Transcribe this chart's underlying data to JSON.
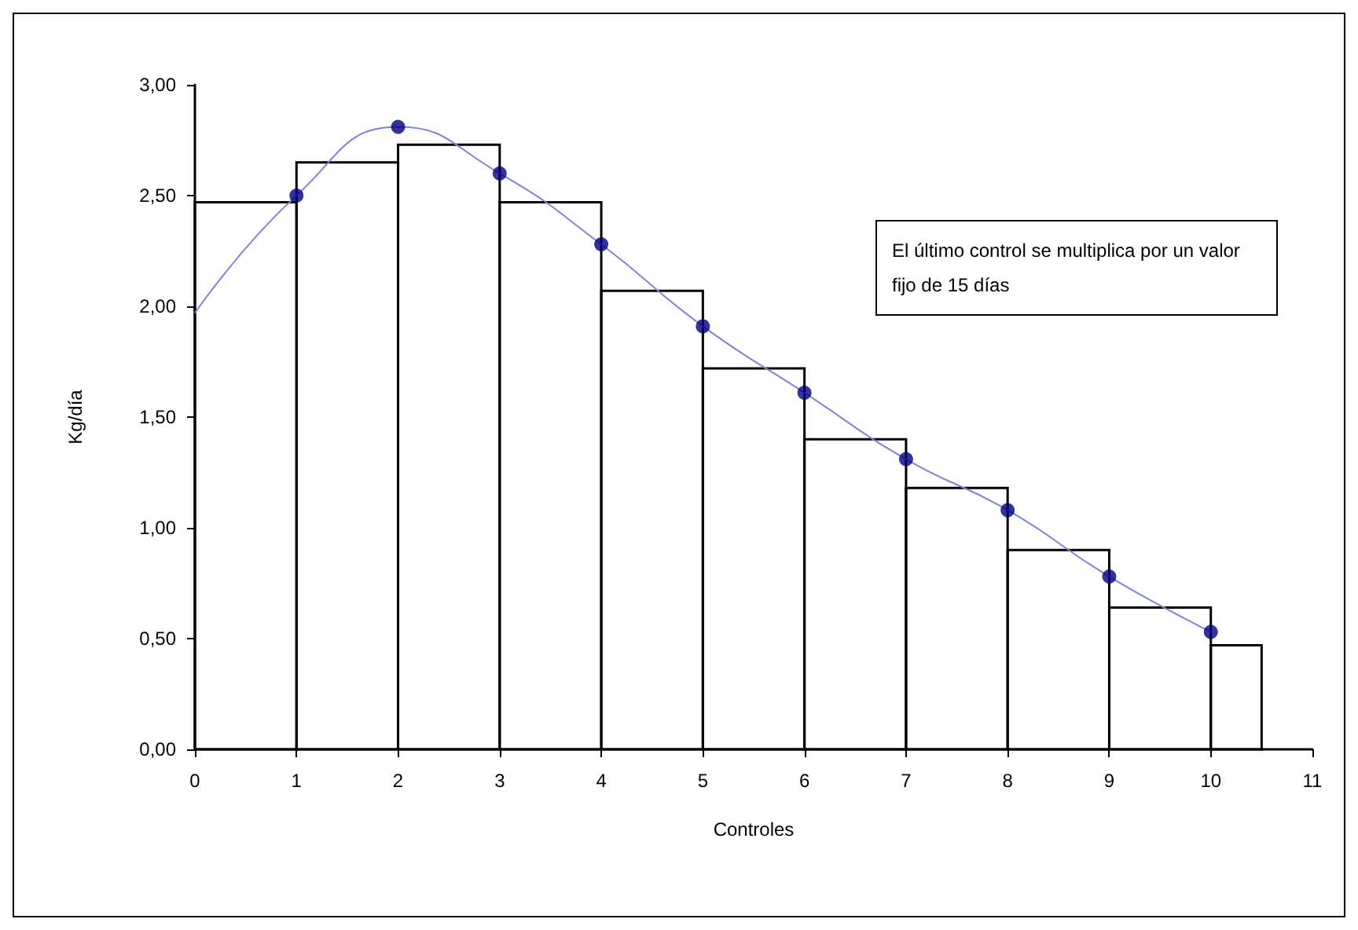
{
  "chart_data": {
    "type": "histogram",
    "xlabel": "Controles",
    "ylabel": "Kg/día",
    "bins": [
      0,
      1,
      2,
      3,
      4,
      5,
      6,
      7,
      8,
      9,
      10,
      10.5
    ],
    "values": [
      2.47,
      2.65,
      2.73,
      2.47,
      2.07,
      1.72,
      1.4,
      1.18,
      0.9,
      0.64,
      0.47
    ],
    "color": "#000000",
    "series": [
      {
        "type": "line",
        "color": "#8080e0",
        "x": [
          0,
          1,
          2,
          3,
          4,
          5,
          6,
          7,
          8,
          9,
          10
        ],
        "values": [
          1.97,
          2.5,
          2.81,
          2.6,
          2.28,
          1.91,
          1.61,
          1.31,
          1.08,
          0.78,
          0.53
        ]
      },
      {
        "type": "scatter",
        "color": "#000080",
        "marker": "circle",
        "x": [
          1,
          2,
          3,
          4,
          5,
          6,
          7,
          8,
          9,
          10
        ],
        "values": [
          2.5,
          2.81,
          2.6,
          2.28,
          1.91,
          1.61,
          1.31,
          1.08,
          0.78,
          0.53
        ]
      }
    ],
    "xlim": [
      0,
      11
    ],
    "xticks": [
      0,
      1,
      2,
      3,
      4,
      5,
      6,
      7,
      8,
      9,
      10,
      11
    ],
    "ylim": [
      0,
      3
    ],
    "yticks": [
      {
        "value": 0,
        "label": "0,00"
      },
      {
        "value": 0.5,
        "label": "0,50"
      },
      {
        "value": 1,
        "label": "1,00"
      },
      {
        "value": 1.5,
        "label": "1,50"
      },
      {
        "value": 2,
        "label": "2,00"
      },
      {
        "value": 2.5,
        "label": "2,50"
      },
      {
        "value": 3,
        "label": "3,00"
      }
    ],
    "annotations": [
      "El último control se multiplica por un valor fijo de 15 días"
    ],
    "grid": false
  }
}
